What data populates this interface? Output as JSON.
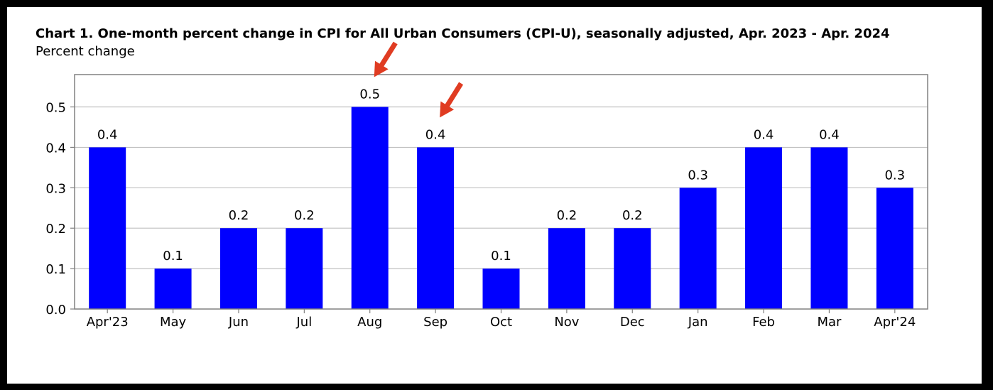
{
  "chart_data": {
    "type": "bar",
    "title": "Chart 1. One-month percent change in CPI for All Urban Consumers (CPI-U), seasonally adjusted, Apr. 2023 - Apr. 2024",
    "ylabel": "Percent change",
    "xlabel": "",
    "categories": [
      "Apr'23",
      "May",
      "Jun",
      "Jul",
      "Aug",
      "Sep",
      "Oct",
      "Nov",
      "Dec",
      "Jan",
      "Feb",
      "Mar",
      "Apr'24"
    ],
    "values": [
      0.4,
      0.1,
      0.2,
      0.2,
      0.5,
      0.4,
      0.1,
      0.2,
      0.2,
      0.3,
      0.4,
      0.4,
      0.3
    ],
    "data_labels": [
      "0.4",
      "0.1",
      "0.2",
      "0.2",
      "0.5",
      "0.4",
      "0.1",
      "0.2",
      "0.2",
      "0.3",
      "0.4",
      "0.4",
      "0.3"
    ],
    "ylim": [
      0,
      0.58
    ],
    "yticks": [
      0.0,
      0.1,
      0.2,
      0.3,
      0.4,
      0.5
    ],
    "ytick_labels": [
      "0.0",
      "0.1",
      "0.2",
      "0.3",
      "0.4",
      "0.5"
    ],
    "grid": "horizontal",
    "legend": "none",
    "bar_color": "#0000ff",
    "gridline_color": "#c0c0c0",
    "annotations": [
      {
        "type": "arrow",
        "target_category": "Aug",
        "color": "#e03c22"
      },
      {
        "type": "arrow",
        "target_category": "Sep",
        "color": "#e03c22"
      }
    ]
  }
}
